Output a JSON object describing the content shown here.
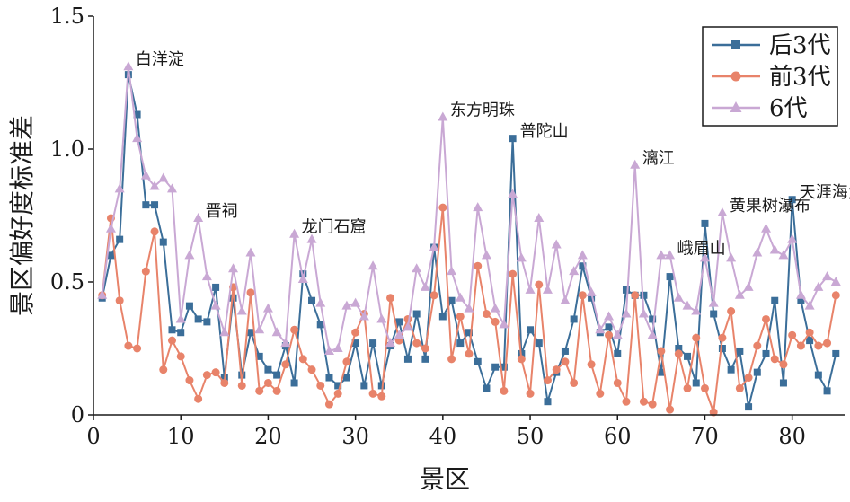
{
  "chart_data": {
    "type": "line",
    "xlabel": "景区",
    "ylabel": "景区偏好度标准差",
    "xlim": [
      0,
      86
    ],
    "ylim": [
      0,
      1.5
    ],
    "xticks": [
      0,
      10,
      20,
      30,
      40,
      50,
      60,
      70,
      80
    ],
    "yticks": [
      0,
      0.5,
      1.0,
      1.5
    ],
    "ytick_labels": [
      "0",
      "0.5",
      "1.0",
      "1.5"
    ],
    "grid": false,
    "legend_position": "top-right",
    "x": [
      1,
      2,
      3,
      4,
      5,
      6,
      7,
      8,
      9,
      10,
      11,
      12,
      13,
      14,
      15,
      16,
      17,
      18,
      19,
      20,
      21,
      22,
      23,
      24,
      25,
      26,
      27,
      28,
      29,
      30,
      31,
      32,
      33,
      34,
      35,
      36,
      37,
      38,
      39,
      40,
      41,
      42,
      43,
      44,
      45,
      46,
      47,
      48,
      49,
      50,
      51,
      52,
      53,
      54,
      55,
      56,
      57,
      58,
      59,
      60,
      61,
      62,
      63,
      64,
      65,
      66,
      67,
      68,
      69,
      70,
      71,
      72,
      73,
      74,
      75,
      76,
      77,
      78,
      79,
      80,
      81,
      82,
      83,
      84,
      85
    ],
    "series": [
      {
        "name": "后3代",
        "color": "#3b6e99",
        "marker": "square",
        "values": [
          0.44,
          0.6,
          0.66,
          1.28,
          1.13,
          0.79,
          0.79,
          0.65,
          0.32,
          0.31,
          0.41,
          0.36,
          0.35,
          0.48,
          0.14,
          0.44,
          0.15,
          0.31,
          0.22,
          0.17,
          0.15,
          0.26,
          0.12,
          0.53,
          0.43,
          0.34,
          0.14,
          0.11,
          0.14,
          0.27,
          0.11,
          0.27,
          0.11,
          0.26,
          0.35,
          0.21,
          0.38,
          0.21,
          0.63,
          0.37,
          0.43,
          0.27,
          0.31,
          0.2,
          0.1,
          0.18,
          0.18,
          1.04,
          0.23,
          0.32,
          0.27,
          0.05,
          0.16,
          0.24,
          0.36,
          0.56,
          0.44,
          0.31,
          0.33,
          0.23,
          0.47,
          0.45,
          0.45,
          0.36,
          0.16,
          0.52,
          0.25,
          0.22,
          0.12,
          0.72,
          0.38,
          0.25,
          0.17,
          0.24,
          0.03,
          0.16,
          0.23,
          0.43,
          0.12,
          0.81,
          0.43,
          0.28,
          0.15,
          0.09,
          0.23
        ]
      },
      {
        "name": "前3代",
        "color": "#e8836a",
        "marker": "circle",
        "values": [
          0.45,
          0.74,
          0.43,
          0.26,
          0.25,
          0.54,
          0.69,
          0.17,
          0.28,
          0.22,
          0.13,
          0.06,
          0.15,
          0.16,
          0.12,
          0.48,
          0.11,
          0.46,
          0.09,
          0.12,
          0.09,
          0.19,
          0.32,
          0.21,
          0.17,
          0.11,
          0.04,
          0.08,
          0.2,
          0.31,
          0.38,
          0.08,
          0.07,
          0.44,
          0.28,
          0.36,
          0.27,
          0.25,
          0.45,
          0.78,
          0.21,
          0.37,
          0.23,
          0.56,
          0.38,
          0.35,
          0.09,
          0.53,
          0.21,
          0.08,
          0.49,
          0.13,
          0.17,
          0.2,
          0.12,
          0.45,
          0.19,
          0.08,
          0.3,
          0.12,
          0.05,
          0.45,
          0.05,
          0.04,
          0.24,
          0.02,
          0.23,
          0.1,
          0.29,
          0.1,
          0.01,
          0.29,
          0.39,
          0.1,
          0.14,
          0.26,
          0.36,
          0.21,
          0.19,
          0.3,
          0.26,
          0.31,
          0.26,
          0.27,
          0.45
        ]
      },
      {
        "name": "6代",
        "color": "#c9a8d4",
        "marker": "triangle",
        "values": [
          0.45,
          0.7,
          0.85,
          1.31,
          1.04,
          0.9,
          0.86,
          0.89,
          0.85,
          0.36,
          0.6,
          0.74,
          0.52,
          0.41,
          0.31,
          0.55,
          0.39,
          0.61,
          0.32,
          0.4,
          0.31,
          0.27,
          0.68,
          0.51,
          0.66,
          0.42,
          0.24,
          0.25,
          0.41,
          0.42,
          0.37,
          0.56,
          0.36,
          0.27,
          0.3,
          0.33,
          0.55,
          0.48,
          0.63,
          1.12,
          0.54,
          0.44,
          0.4,
          0.78,
          0.6,
          0.4,
          0.34,
          0.83,
          0.59,
          0.47,
          0.74,
          0.47,
          0.64,
          0.43,
          0.54,
          0.6,
          0.46,
          0.32,
          0.37,
          0.3,
          0.38,
          0.94,
          0.38,
          0.3,
          0.6,
          0.6,
          0.44,
          0.41,
          0.39,
          0.59,
          0.42,
          0.76,
          0.59,
          0.45,
          0.48,
          0.61,
          0.7,
          0.62,
          0.6,
          0.66,
          0.45,
          0.41,
          0.48,
          0.52,
          0.5
        ]
      }
    ],
    "annotations": [
      {
        "text": "白洋淀",
        "x": 4,
        "y": 1.31
      },
      {
        "text": "晋祠",
        "x": 12,
        "y": 0.74
      },
      {
        "text": "龙门石窟",
        "x": 23,
        "y": 0.68
      },
      {
        "text": "东方明珠",
        "x": 40,
        "y": 1.12
      },
      {
        "text": "普陀山",
        "x": 48,
        "y": 1.04
      },
      {
        "text": "漓江",
        "x": 62,
        "y": 0.94
      },
      {
        "text": "峨眉山",
        "x": 66,
        "y": 0.6
      },
      {
        "text": "黄果树瀑布",
        "x": 72,
        "y": 0.76
      },
      {
        "text": "天涯海角",
        "x": 80,
        "y": 0.81
      }
    ]
  }
}
